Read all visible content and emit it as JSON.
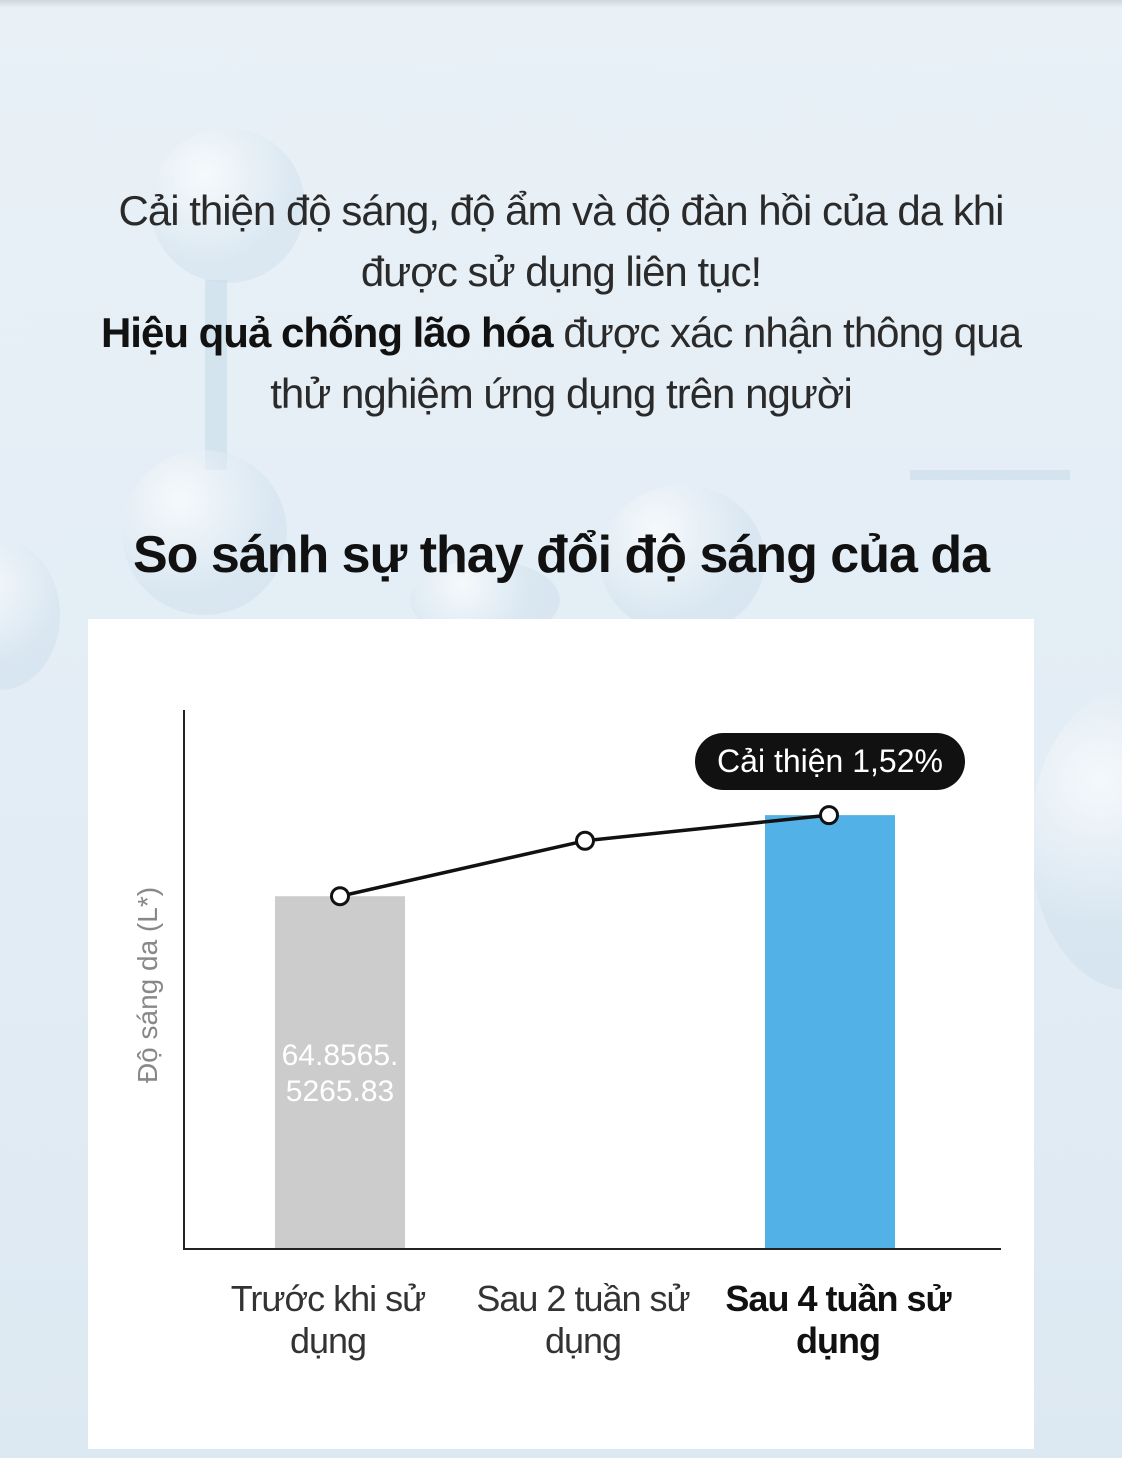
{
  "headline": {
    "line1": "Cải thiện độ sáng, độ ẩm và độ đàn hồi của da khi",
    "line2": "được sử dụng liên tục!",
    "line3_bold": "Hiệu quả chống lão hóa",
    "line3_rest": " được xác nhận thông qua",
    "line4": "thử nghiệm ứng dụng trên người"
  },
  "chart_data": {
    "type": "bar",
    "title": "So sánh sự thay đổi độ sáng của da",
    "ylabel": "Độ sáng da (L*)",
    "xlabel": "",
    "categories": [
      "Trước khi sử dụng",
      "Sau 2 tuần sử dụng",
      "Sau 4 tuần sử dụng"
    ],
    "categories_lines": [
      [
        "Trước khi sử",
        "dụng"
      ],
      [
        "Sau 2 tuần sử",
        "dụng"
      ],
      [
        "Sau 4 tuần sử",
        "dụng"
      ]
    ],
    "values": [
      64.85,
      65.52,
      65.83
    ],
    "bars_shown": [
      true,
      false,
      true
    ],
    "line_overlay": true,
    "bar_label_lines": [
      "64.8565.",
      "5265.83"
    ],
    "annotation": "Cải thiện 1,52%",
    "ylim": [
      60.6,
      67.1
    ],
    "grid": false,
    "colors": {
      "before": "#cccccc",
      "after": "#52b1e6",
      "line": "#111111"
    }
  }
}
